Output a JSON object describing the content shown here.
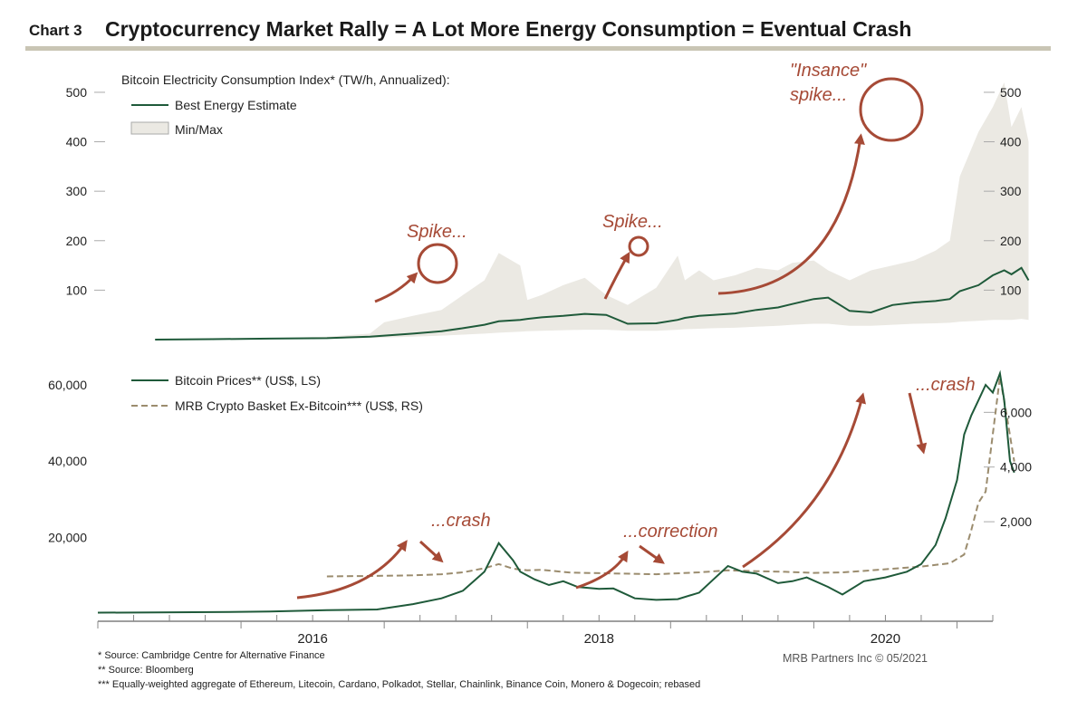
{
  "header": {
    "chart_number": "Chart 3",
    "title": "Cryptocurrency Market Rally = A Lot More Energy Consumption = Eventual Crash"
  },
  "colors": {
    "accent_rule": "#c9c5b4",
    "energy_line": "#1f5a3a",
    "minmax_fill": "#ebe9e3",
    "bitcoin_line": "#1f5a3a",
    "basket_line": "#9b8c6e",
    "annotation": "#a64a36"
  },
  "chart_data": [
    {
      "type": "area",
      "title": "Bitcoin Electricity Consumption Index* (TW/h, Annualized):",
      "ylim": [
        0,
        520
      ],
      "yticks": [
        100,
        200,
        300,
        400,
        500
      ],
      "ytick_labels": [
        "100",
        "200",
        "300",
        "400",
        "500"
      ],
      "legend": [
        {
          "key": "best",
          "label": "Best Energy Estimate"
        },
        {
          "key": "minmax",
          "label": "Min/Max"
        }
      ],
      "x": [
        2015.4,
        2015.8,
        2016.2,
        2016.6,
        2016.9,
        2017.0,
        2017.2,
        2017.4,
        2017.55,
        2017.7,
        2017.8,
        2017.95,
        2018.0,
        2018.1,
        2018.25,
        2018.4,
        2018.55,
        2018.7,
        2018.9,
        2019.05,
        2019.1,
        2019.2,
        2019.3,
        2019.45,
        2019.6,
        2019.75,
        2019.85,
        2020.0,
        2020.1,
        2020.25,
        2020.4,
        2020.55,
        2020.7,
        2020.85,
        2020.95,
        2021.02,
        2021.15,
        2021.25,
        2021.33,
        2021.38,
        2021.45,
        2021.5
      ],
      "series": [
        {
          "name": "Best Energy Estimate",
          "values": [
            0,
            1,
            2,
            3,
            6,
            8,
            12,
            17,
            23,
            30,
            37,
            40,
            42,
            45,
            48,
            52,
            50,
            32,
            33,
            40,
            44,
            48,
            50,
            53,
            60,
            65,
            72,
            82,
            85,
            58,
            55,
            70,
            75,
            78,
            82,
            98,
            110,
            130,
            140,
            132,
            145,
            120
          ]
        },
        {
          "name": "Min",
          "values": [
            0,
            0,
            1,
            2,
            3,
            4,
            6,
            8,
            10,
            12,
            14,
            16,
            17,
            18,
            19,
            20,
            20,
            18,
            18,
            20,
            21,
            22,
            23,
            24,
            26,
            28,
            30,
            32,
            32,
            28,
            28,
            30,
            32,
            33,
            34,
            36,
            38,
            40,
            40,
            40,
            42,
            40
          ]
        },
        {
          "name": "Max",
          "values": [
            0,
            1,
            3,
            6,
            12,
            35,
            48,
            60,
            90,
            120,
            175,
            150,
            80,
            90,
            110,
            125,
            90,
            70,
            105,
            170,
            120,
            140,
            120,
            130,
            145,
            140,
            155,
            160,
            140,
            120,
            140,
            150,
            160,
            180,
            200,
            330,
            420,
            470,
            520,
            430,
            470,
            400
          ]
        }
      ],
      "annotations": [
        {
          "text": "Spike...",
          "x": 2017.75,
          "y": 230
        },
        {
          "text": "Spike...",
          "x": 2019.1,
          "y": 235
        },
        {
          "text": "\"Insance\"",
          "x": 2021.1,
          "y": 540
        },
        {
          "text": "spike...",
          "x": 2021.1,
          "y": 495
        }
      ]
    },
    {
      "type": "line",
      "ylim_left": [
        -2000,
        65000
      ],
      "ylim_right": [
        -1640,
        7700
      ],
      "yticks_left": [
        20000,
        40000,
        60000
      ],
      "ytick_labels_left": [
        "20,000",
        "40,000",
        "60,000"
      ],
      "yticks_right": [
        2000,
        4000,
        6000
      ],
      "ytick_labels_right": [
        "2,000",
        "4,000",
        "6,000"
      ],
      "xticks": [
        2016,
        2018,
        2020
      ],
      "xtick_labels": [
        "2016",
        "2018",
        "2020"
      ],
      "xlim": [
        2015.0,
        2021.25
      ],
      "legend": [
        {
          "key": "btc",
          "label": "Bitcoin Prices** (US$, LS)"
        },
        {
          "key": "basket",
          "label": "MRB Crypto Basket Ex-Bitcoin*** (US$, RS)"
        }
      ],
      "series": [
        {
          "name": "Bitcoin Prices** (US$, LS)",
          "x": [
            2015.0,
            2015.4,
            2015.8,
            2016.2,
            2016.6,
            2016.95,
            2017.2,
            2017.4,
            2017.55,
            2017.7,
            2017.8,
            2017.9,
            2017.95,
            2018.05,
            2018.15,
            2018.25,
            2018.35,
            2018.5,
            2018.6,
            2018.75,
            2018.9,
            2019.05,
            2019.2,
            2019.3,
            2019.4,
            2019.5,
            2019.6,
            2019.75,
            2019.85,
            2019.95,
            2020.1,
            2020.2,
            2020.35,
            2020.5,
            2020.65,
            2020.75,
            2020.85,
            2020.92,
            2021.0,
            2021.05,
            2021.1,
            2021.15,
            2021.2,
            2021.25,
            2021.3,
            2021.33,
            2021.37,
            2021.4
          ],
          "values": [
            250,
            300,
            400,
            550,
            900,
            1100,
            2500,
            4000,
            6000,
            11000,
            18500,
            14000,
            11000,
            9000,
            7500,
            8500,
            7000,
            6500,
            6600,
            4000,
            3600,
            3800,
            5500,
            9000,
            12500,
            11000,
            10500,
            8000,
            8500,
            9500,
            7000,
            5000,
            8500,
            9500,
            11000,
            13000,
            18000,
            25000,
            35000,
            47000,
            52000,
            56000,
            60000,
            58000,
            63000,
            56000,
            40000,
            37000
          ]
        },
        {
          "name": "MRB Crypto Basket Ex-Bitcoin*** (US$, RS)",
          "x": [
            2016.6,
            2016.95,
            2017.2,
            2017.4,
            2017.55,
            2017.7,
            2017.8,
            2017.9,
            2018.0,
            2018.1,
            2018.3,
            2018.6,
            2018.9,
            2019.2,
            2019.4,
            2019.6,
            2019.8,
            2020.0,
            2020.2,
            2020.4,
            2020.6,
            2020.75,
            2020.85,
            2020.95,
            2021.05,
            2021.1,
            2021.15,
            2021.2,
            2021.25,
            2021.3,
            2021.35,
            2021.4
          ],
          "values": [
            0,
            20,
            40,
            80,
            150,
            300,
            450,
            280,
            220,
            240,
            140,
            110,
            80,
            150,
            220,
            190,
            170,
            130,
            150,
            220,
            300,
            360,
            420,
            480,
            800,
            1700,
            2700,
            3100,
            5200,
            7300,
            5800,
            4200
          ]
        }
      ],
      "annotations": [
        {
          "text": "...crash",
          "x": 2017.95,
          "y": 22000
        },
        {
          "text": "...correction",
          "x": 2019.4,
          "y": 19000
        },
        {
          "text": "...crash",
          "x": 2021.55,
          "y": 59000
        }
      ]
    }
  ],
  "footnotes": [
    "*   Source: Cambridge Centre for Alternative Finance",
    "**  Source: Bloomberg",
    "*** Equally-weighted aggregate of Ethereum, Litecoin, Cardano, Polkadot, Stellar, Chainlink, Binance Coin, Monero & Dogecoin; rebased"
  ],
  "credit": "MRB Partners Inc © 05/2021"
}
